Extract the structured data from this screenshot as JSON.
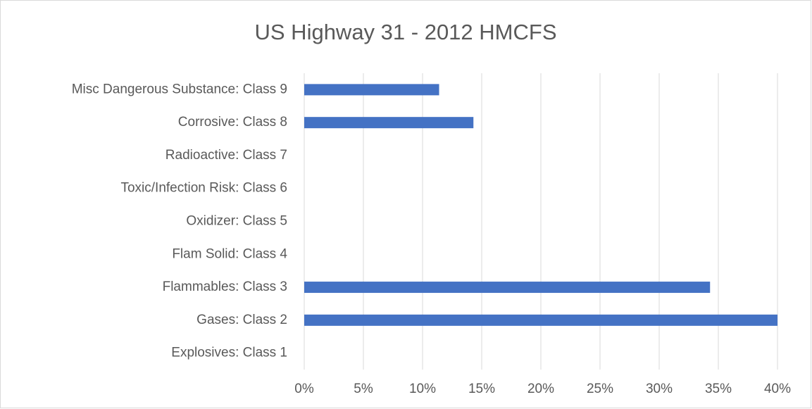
{
  "chart_data": {
    "type": "bar",
    "orientation": "horizontal",
    "title": "US Highway 31 - 2012 HMCFS",
    "categories": [
      "Explosives: Class 1",
      "Gases: Class 2",
      "Flammables: Class 3",
      "Flam Solid: Class 4",
      "Oxidizer: Class 5",
      "Toxic/Infection Risk: Class 6",
      "Radioactive: Class 7",
      "Corrosive: Class 8",
      "Misc Dangerous Substance: Class 9"
    ],
    "values": [
      0,
      40,
      34.3,
      0,
      0,
      0,
      0,
      14.3,
      11.4
    ],
    "color": "#4472c4",
    "xlim": [
      0,
      40
    ],
    "xticks": [
      {
        "value": 0,
        "label": "0%"
      },
      {
        "value": 5,
        "label": "5%"
      },
      {
        "value": 10,
        "label": "10%"
      },
      {
        "value": 15,
        "label": "15%"
      },
      {
        "value": 20,
        "label": "20%"
      },
      {
        "value": 25,
        "label": "25%"
      },
      {
        "value": 30,
        "label": "30%"
      },
      {
        "value": 35,
        "label": "35%"
      },
      {
        "value": 40,
        "label": "40%"
      }
    ],
    "grid": true
  }
}
